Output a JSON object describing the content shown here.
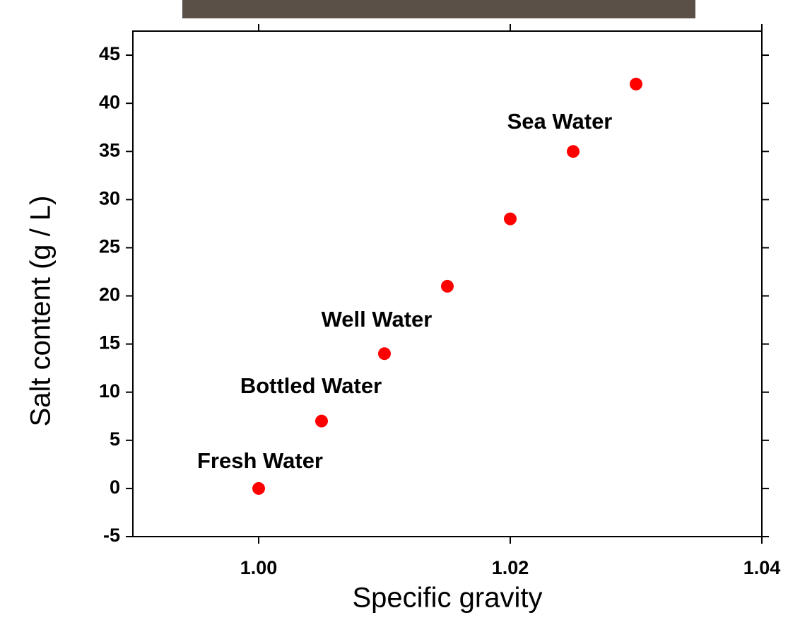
{
  "chart_data": {
    "type": "scatter",
    "x_label": "Specific gravity",
    "y_label": "Salt content (g / L)",
    "annotations": [
      "Fresh Water",
      "Bottled Water",
      "Well Water",
      "Sea Water"
    ],
    "x": [
      1.0,
      1.005,
      1.01,
      1.015,
      1.02,
      1.025,
      1.03
    ],
    "series": [
      {
        "color": "#ff0000",
        "values": [
          0,
          7,
          14,
          21,
          28,
          35,
          42
        ]
      }
    ],
    "xlim": [
      0.99,
      1.04
    ],
    "xticks": [
      {
        "value": 1,
        "label": "1.00"
      },
      1.02,
      1.04
    ],
    "ylim": [
      -5,
      47.5
    ],
    "yticks": [
      -5,
      0,
      5,
      10,
      15,
      20,
      25,
      30,
      35,
      40,
      45
    ]
  }
}
